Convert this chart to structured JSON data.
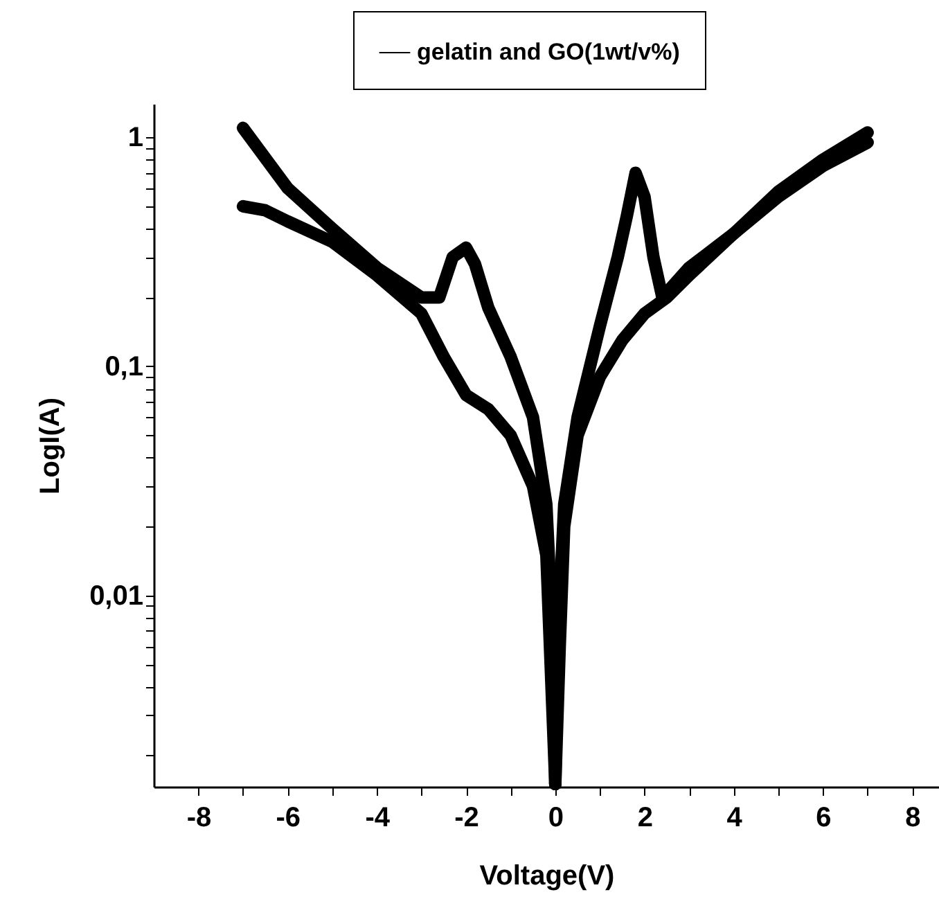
{
  "chart_data": {
    "type": "line",
    "xlabel": "Voltage(V)",
    "ylabel": "LogI(A)",
    "log": "y",
    "legend": "top right",
    "grid": false,
    "marker": "none",
    "line_style": "solid",
    "xlim": [
      -9,
      8.6
    ],
    "ylim": [
      0.00146,
      1.4
    ],
    "xticks": [
      -8,
      {
        "value": -7,
        "label": null
      },
      -6,
      {
        "value": -5,
        "label": null
      },
      -4,
      {
        "value": -3,
        "label": null
      },
      -2,
      {
        "value": -1,
        "label": null
      },
      0,
      {
        "value": 1,
        "label": null
      },
      2,
      {
        "value": 3,
        "label": null
      },
      4,
      {
        "value": 5,
        "label": null
      },
      6,
      {
        "value": 7,
        "label": null
      },
      8
    ],
    "yticks": [
      {
        "value": 0.002,
        "label": null
      },
      {
        "value": 0.003,
        "label": null
      },
      {
        "value": 0.004,
        "label": null
      },
      {
        "value": 0.005,
        "label": null
      },
      {
        "value": 0.006,
        "label": null
      },
      {
        "value": 0.007,
        "label": null
      },
      {
        "value": 0.008,
        "label": null
      },
      {
        "value": 0.009,
        "label": null
      },
      {
        "value": 0.01,
        "label": "0,01"
      },
      {
        "value": 0.02,
        "label": null
      },
      {
        "value": 0.03,
        "label": null
      },
      {
        "value": 0.04,
        "label": null
      },
      {
        "value": 0.05,
        "label": null
      },
      {
        "value": 0.06,
        "label": null
      },
      {
        "value": 0.07,
        "label": null
      },
      {
        "value": 0.08,
        "label": null
      },
      {
        "value": 0.09,
        "label": null
      },
      {
        "value": 0.1,
        "label": "0,1"
      },
      {
        "value": 0.2,
        "label": null
      },
      {
        "value": 0.3,
        "label": null
      },
      {
        "value": 0.4,
        "label": null
      },
      {
        "value": 0.5,
        "label": null
      },
      {
        "value": 0.6,
        "label": null
      },
      {
        "value": 0.7,
        "label": null
      },
      {
        "value": 0.8,
        "label": null
      },
      {
        "value": 0.9,
        "label": null
      },
      1
    ],
    "series": [
      {
        "name": "gelatin and GO(1wt/v%)",
        "color": "#000000",
        "x": [
          0,
          0.1,
          0.2,
          0.5,
          1,
          1.5,
          2,
          2.5,
          3,
          4,
          5,
          6,
          7
        ],
        "values": [
          0.0015,
          0.006,
          0.02,
          0.05,
          0.09,
          0.13,
          0.17,
          0.2,
          0.25,
          0.38,
          0.58,
          0.8,
          1.05
        ]
      },
      {
        "color": "#000000",
        "x": [
          7,
          6,
          5,
          4,
          3,
          2.4,
          2.2,
          2,
          1.8,
          1.6,
          1.4,
          1,
          0.5,
          0.2,
          0.05,
          0
        ],
        "values": [
          0.95,
          0.75,
          0.55,
          0.38,
          0.27,
          0.2,
          0.3,
          0.55,
          0.7,
          0.45,
          0.3,
          0.15,
          0.06,
          0.025,
          0.006,
          0.0015
        ]
      },
      {
        "color": "#000000",
        "x": [
          0,
          -0.05,
          -0.2,
          -0.5,
          -1,
          -1.5,
          -1.8,
          -2,
          -2.3,
          -2.6,
          -3,
          -4,
          -5,
          -6,
          -7
        ],
        "values": [
          0.0015,
          0.006,
          0.025,
          0.06,
          0.11,
          0.18,
          0.28,
          0.33,
          0.3,
          0.2,
          0.2,
          0.27,
          0.4,
          0.6,
          1.1
        ]
      },
      {
        "color": "#000000",
        "x": [
          -7,
          -6.5,
          -6,
          -5,
          -4,
          -3,
          -2.5,
          -2,
          -1.5,
          -1,
          -0.5,
          -0.2,
          0
        ],
        "values": [
          0.5,
          0.48,
          0.43,
          0.35,
          0.25,
          0.17,
          0.11,
          0.075,
          0.065,
          0.05,
          0.03,
          0.015,
          0.0015
        ]
      }
    ]
  }
}
